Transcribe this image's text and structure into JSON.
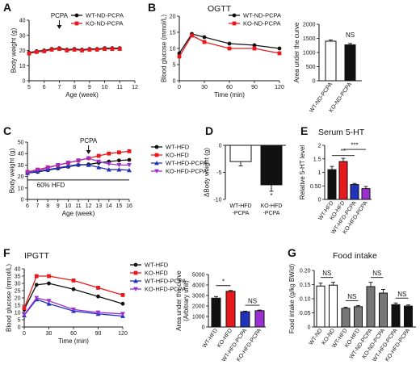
{
  "panels": {
    "A": {
      "letter": "A"
    },
    "B": {
      "letter": "B",
      "title": "OGTT"
    },
    "C": {
      "letter": "C"
    },
    "D": {
      "letter": "D"
    },
    "E": {
      "letter": "E",
      "title": "Serum 5-HT"
    },
    "F": {
      "letter": "F",
      "title": "IPGTT"
    },
    "G": {
      "letter": "G",
      "title": "Food intake"
    }
  },
  "colors": {
    "black": "#111111",
    "red": "#e8191d",
    "blue": "#2233bb",
    "purple": "#9b30d0",
    "grey": "#777777",
    "white": "#ffffff"
  },
  "chart_data": [
    {
      "id": "A",
      "type": "line",
      "xlabel": "Age (week)",
      "ylabel": "Body weight (g)",
      "xlim": [
        5,
        12
      ],
      "ylim": [
        0,
        40
      ],
      "xticks": [
        5,
        6,
        7,
        8,
        9,
        10,
        11,
        12
      ],
      "yticks": [
        0,
        10,
        20,
        30,
        40
      ],
      "annotation": {
        "text": "PCPA",
        "x": 7
      },
      "series": [
        {
          "name": "WT-ND-PCPA",
          "color": "black",
          "marker": "circle",
          "x": [
            5,
            5.5,
            6,
            6.5,
            7,
            7.5,
            8,
            8.5,
            9,
            9.5,
            10,
            10.5,
            11
          ],
          "y": [
            18.5,
            19.5,
            20,
            21,
            21.5,
            20.5,
            21,
            20.5,
            21,
            21,
            21.5,
            21.5,
            21.5
          ]
        },
        {
          "name": "KO-ND-PCPA",
          "color": "red",
          "marker": "square",
          "x": [
            5,
            5.5,
            6,
            6.5,
            7,
            7.5,
            8,
            8.5,
            9,
            9.5,
            10,
            10.5,
            11
          ],
          "y": [
            18,
            19,
            19.5,
            20.5,
            21,
            20,
            20.5,
            20,
            20.5,
            20.5,
            21,
            21,
            21
          ]
        }
      ]
    },
    {
      "id": "B_line",
      "type": "line",
      "xlabel": "Time (min)",
      "ylabel": "Blood glucose (mmol/L)",
      "xlim": [
        0,
        120
      ],
      "ylim": [
        0,
        20
      ],
      "xticks": [
        0,
        30,
        60,
        90,
        120
      ],
      "yticks": [
        0,
        5,
        10,
        15,
        20
      ],
      "series": [
        {
          "name": "WT-ND-PCPA",
          "color": "black",
          "marker": "circle",
          "x": [
            0,
            15,
            30,
            60,
            90,
            120
          ],
          "y": [
            8.5,
            14.5,
            13.5,
            11.5,
            11,
            10
          ]
        },
        {
          "name": "KO-ND-PCPA",
          "color": "red",
          "marker": "square",
          "x": [
            0,
            15,
            30,
            60,
            90,
            120
          ],
          "y": [
            7.5,
            14,
            12,
            10,
            10,
            8.5
          ]
        }
      ]
    },
    {
      "id": "B_bar",
      "type": "bar",
      "ylabel": "Area under the curve",
      "ylim": [
        0,
        2000
      ],
      "yticks": [
        0,
        500,
        1000,
        1500,
        2000
      ],
      "categories": [
        "WT-ND-PCPA",
        "KO-ND-PCPA"
      ],
      "values": [
        1400,
        1270
      ],
      "errors": [
        40,
        50
      ],
      "fills": [
        "white",
        "black"
      ],
      "sig": [
        {
          "text": "NS",
          "from": 1,
          "to": 1
        }
      ]
    },
    {
      "id": "C",
      "type": "line",
      "xlabel": "Age (week)",
      "ylabel": "Body weight (g)",
      "xlim": [
        6,
        16
      ],
      "ylim": [
        0,
        50
      ],
      "xticks": [
        6,
        7,
        8,
        9,
        10,
        11,
        12,
        13,
        14,
        15,
        16
      ],
      "yticks": [
        0,
        10,
        20,
        30,
        40,
        50
      ],
      "annotation": {
        "text": "PCPA",
        "x": 12
      },
      "band": {
        "text": "60% HFD",
        "x0": 6,
        "x1": 16,
        "y": 17
      },
      "series": [
        {
          "name": "WT-HFD",
          "color": "black",
          "marker": "circle",
          "x": [
            6,
            7,
            8,
            9,
            10,
            11,
            12,
            13,
            14,
            15,
            16
          ],
          "y": [
            23,
            24,
            25.5,
            27,
            28.5,
            30,
            30.5,
            32,
            33,
            34,
            34.5
          ]
        },
        {
          "name": "KO-HFD",
          "color": "red",
          "marker": "square",
          "x": [
            6,
            7,
            8,
            9,
            10,
            11,
            12,
            13,
            14,
            15,
            16
          ],
          "y": [
            24,
            26,
            28,
            30,
            32,
            34,
            36,
            38,
            40,
            41,
            42
          ]
        },
        {
          "name": "WT-HFD-PCPA",
          "color": "blue",
          "marker": "triangle",
          "x": [
            6,
            7,
            8,
            9,
            10,
            11,
            12,
            13,
            14,
            15,
            16
          ],
          "y": [
            23,
            24.5,
            26,
            27.5,
            29,
            30.5,
            30,
            28,
            26,
            26,
            25.5
          ]
        },
        {
          "name": "KO-HFD-PCPA",
          "color": "purple",
          "marker": "triangle-down",
          "x": [
            6,
            7,
            8,
            9,
            10,
            11,
            12,
            13,
            14,
            15,
            16
          ],
          "y": [
            23.5,
            25.5,
            27.5,
            30,
            32,
            34,
            36,
            33,
            31,
            30,
            30
          ]
        }
      ]
    },
    {
      "id": "D",
      "type": "bar",
      "ylabel": "ΔBody weight (g)",
      "ylim": [
        -10,
        0
      ],
      "yticks": [
        -10,
        -5,
        0
      ],
      "categories": [
        "WT-HFD\n-PCPA",
        "KO-HFD\n-PCPA"
      ],
      "values": [
        -3,
        -7.3
      ],
      "errors": [
        0.8,
        1.2
      ],
      "fills": [
        "white",
        "black"
      ],
      "sig": [
        {
          "text": "*",
          "from": 1,
          "to": 1
        }
      ]
    },
    {
      "id": "E",
      "type": "bar",
      "ylabel": "Relative 5-HT level",
      "ylim": [
        0,
        2.0
      ],
      "yticks": [
        0,
        0.5,
        1.0,
        1.5,
        2.0
      ],
      "categories": [
        "WT-HFD",
        "KO-HFD",
        "WT-HFD-PCPA",
        "KO-HFD-PCPA"
      ],
      "values": [
        1.1,
        1.4,
        0.55,
        0.4
      ],
      "errors": [
        0.12,
        0.12,
        0.04,
        0.08
      ],
      "fills": [
        "black",
        "red",
        "blue",
        "purple"
      ],
      "sig": [
        {
          "text": "**",
          "from": 0,
          "to": 2
        },
        {
          "text": "***",
          "from": 1,
          "to": 3
        }
      ]
    },
    {
      "id": "F_line",
      "type": "line",
      "xlabel": "Time (min)",
      "ylabel": "Blood glucose (mmol/L)",
      "xlim": [
        0,
        120
      ],
      "ylim": [
        0,
        40
      ],
      "xticks": [
        0,
        30,
        60,
        90,
        120
      ],
      "yticks": [
        0,
        5,
        10,
        15,
        20,
        25,
        30,
        35,
        40
      ],
      "series": [
        {
          "name": "WT-HFD",
          "color": "black",
          "marker": "circle",
          "x": [
            0,
            15,
            30,
            60,
            90,
            120
          ],
          "y": [
            12,
            29,
            30,
            26,
            21,
            16
          ]
        },
        {
          "name": "KO-HFD",
          "color": "red",
          "marker": "square",
          "x": [
            0,
            15,
            30,
            60,
            90,
            120
          ],
          "y": [
            13,
            35,
            35,
            32,
            27,
            22
          ]
        },
        {
          "name": "WT-HFD-PCPA",
          "color": "blue",
          "marker": "triangle",
          "x": [
            0,
            15,
            30,
            60,
            90,
            120
          ],
          "y": [
            8,
            19,
            16,
            11,
            9,
            7.5
          ]
        },
        {
          "name": "KO-HFD-PCPA",
          "color": "purple",
          "marker": "triangle-down",
          "x": [
            0,
            15,
            30,
            60,
            90,
            120
          ],
          "y": [
            8.5,
            20,
            18,
            12,
            10,
            9
          ]
        }
      ]
    },
    {
      "id": "F_bar",
      "type": "bar",
      "ylabel": "Area under the curve\n(Arbitrary unit)",
      "ylim": [
        0,
        5000
      ],
      "yticks": [
        0,
        1000,
        2000,
        3000,
        4000,
        5000
      ],
      "categories": [
        "WT-HFD",
        "KO-HFD",
        "WT-HFD-PCPA",
        "KO-HFD-PCPA"
      ],
      "values": [
        2750,
        3400,
        1450,
        1550
      ],
      "errors": [
        150,
        80,
        60,
        60
      ],
      "fills": [
        "black",
        "red",
        "blue",
        "purple"
      ],
      "sig": [
        {
          "text": "*",
          "from": 0,
          "to": 1
        },
        {
          "text": "NS",
          "from": 2,
          "to": 3
        }
      ]
    },
    {
      "id": "G",
      "type": "bar",
      "ylabel": "Food intake (g/kg BW/d)",
      "ylim": [
        0,
        0.2
      ],
      "yticks": [
        0,
        0.05,
        0.1,
        0.15,
        0.2
      ],
      "categories": [
        "WT-ND",
        "KO-ND",
        "WT-HFD",
        "KO-HFD",
        "WT-ND-PCPA",
        "KO-ND-PCPA",
        "WT-HFD-PCPA",
        "KO-HFD-PCPA"
      ],
      "values": [
        0.145,
        0.148,
        0.066,
        0.072,
        0.143,
        0.12,
        0.079,
        0.074
      ],
      "errors": [
        0.01,
        0.01,
        0.004,
        0.004,
        0.015,
        0.013,
        0.006,
        0.004
      ],
      "fills": [
        "white",
        "white",
        "grey",
        "grey",
        "grey",
        "grey",
        "black",
        "black"
      ],
      "sig": [
        {
          "text": "NS",
          "from": 0,
          "to": 1
        },
        {
          "text": "NS",
          "from": 2,
          "to": 3
        },
        {
          "text": "NS",
          "from": 4,
          "to": 5
        },
        {
          "text": "NS",
          "from": 6,
          "to": 7
        }
      ]
    }
  ]
}
